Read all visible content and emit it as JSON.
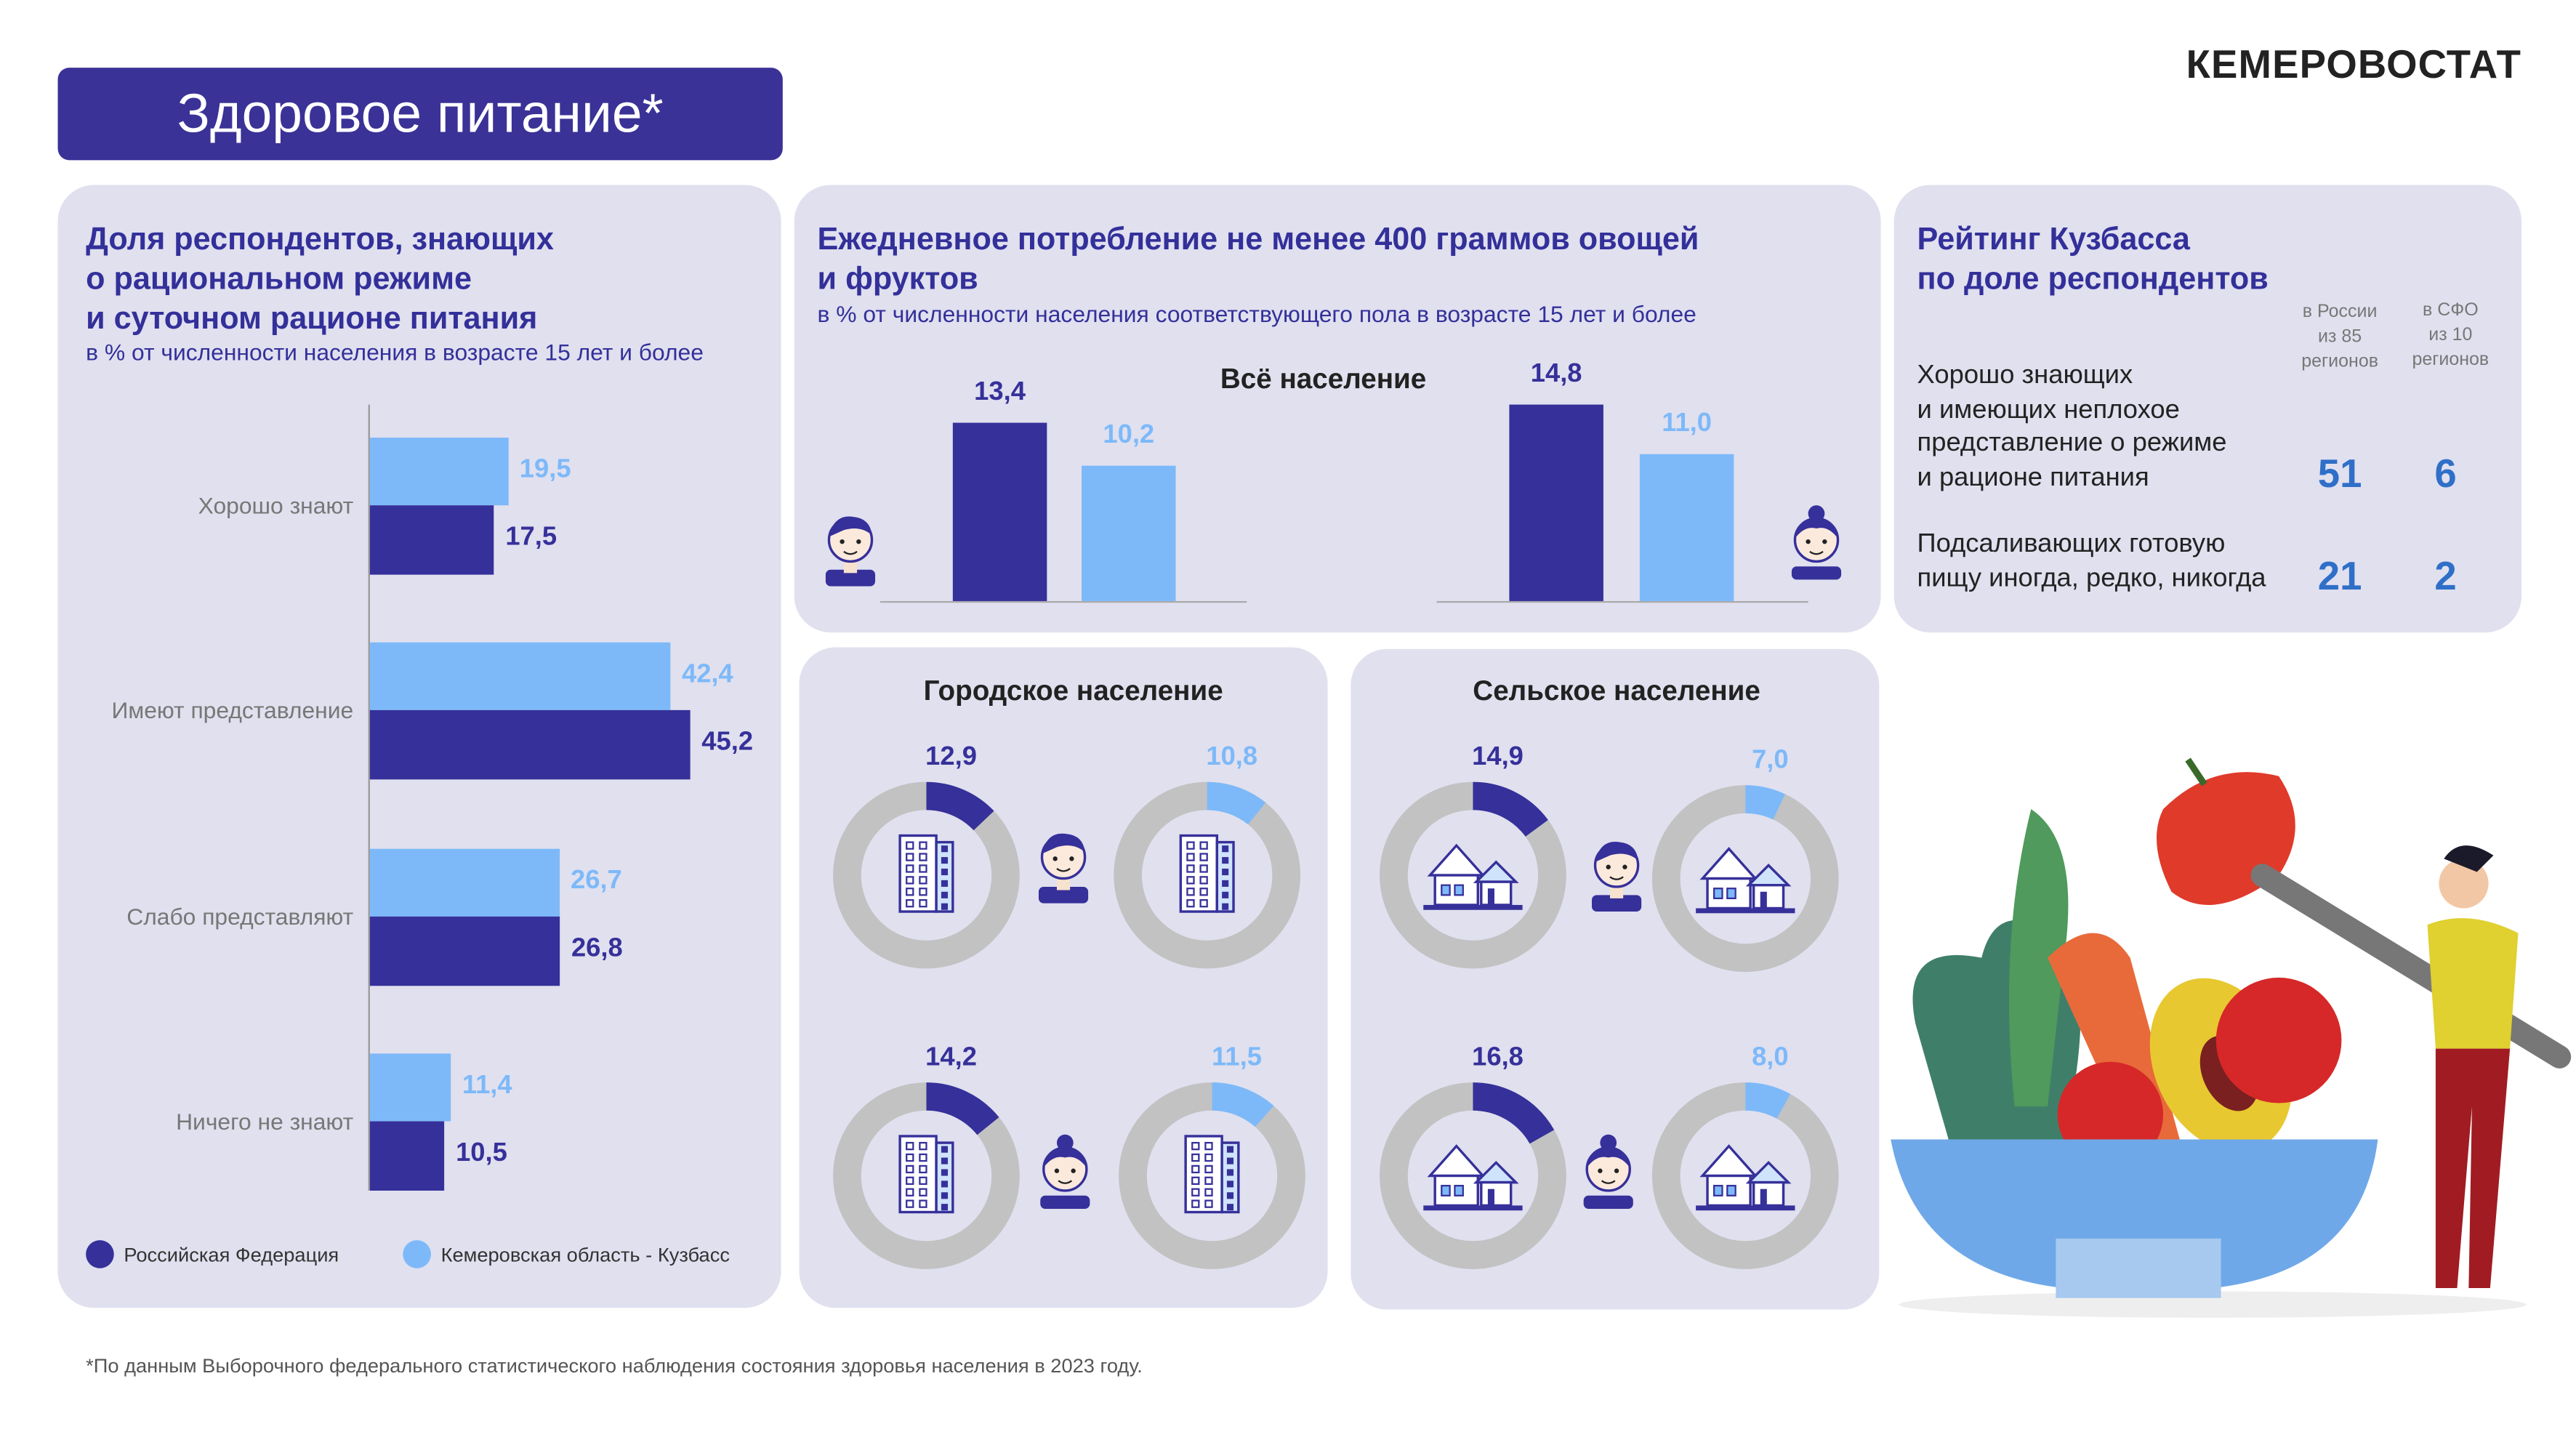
{
  "header": {
    "title": "Здоровое питание*",
    "logo": "КЕМЕРОВОСТАТ"
  },
  "footnote": "*По данным Выборочного федерального статистического наблюдения состояния здоровья населения в 2023 году.",
  "ranking": {
    "title_lines": [
      "Рейтинг  Кузбасса",
      "по доле респондентов"
    ],
    "col_headers": [
      [
        "в России",
        "из 85",
        "регионов"
      ],
      [
        "в СФО",
        "из 10",
        "регионов"
      ]
    ],
    "rows": [
      {
        "label_lines": [
          "Хорошо знающих",
          "и имеющих неплохое",
          "представление о режиме",
          "и рационе питания"
        ],
        "russia": "51",
        "sfo": "6"
      },
      {
        "label_lines": [
          "Подсаливающих готовую",
          "пищу иногда, редко, никогда"
        ],
        "russia": "21",
        "sfo": "2"
      }
    ]
  },
  "colors": {
    "rf": "#36309a",
    "kuzbass": "#7db9f9",
    "panel": "#e0e0ef",
    "ring": "#c2c2c2"
  },
  "chart_data": [
    {
      "type": "bar",
      "orientation": "horizontal",
      "title_lines": [
        "Доля респондентов, знающих",
        "о рациональном режиме",
        "и суточном рационе питания"
      ],
      "subtitle": "в % от численности населения в возрасте 15 лет и более",
      "categories": [
        "Хорошо знают",
        "Имеют представление",
        "Слабо представляют",
        "Ничего не знают"
      ],
      "series": [
        {
          "name": "Кемеровская область - Кузбасс",
          "values": [
            19.5,
            42.4,
            26.7,
            11.4
          ]
        },
        {
          "name": "Российская Федерация",
          "values": [
            17.5,
            45.2,
            26.8,
            10.5
          ]
        }
      ],
      "legend": [
        "Российская Федерация",
        "Кемеровская область - Кузбасс"
      ],
      "legend_position": "bottom"
    },
    {
      "type": "bar",
      "title_lines": [
        "Ежедневное потребление не менее 400 граммов овощей",
        "и фруктов"
      ],
      "subtitle": "в % от численности населения соответствующего пола в возрасте 15 лет и более",
      "label": "Всё население",
      "categories": [
        "Мужчины",
        "Женщины"
      ],
      "series": [
        {
          "name": "Российская Федерация",
          "values": [
            13.4,
            14.8
          ]
        },
        {
          "name": "Кемеровская область - Кузбасс",
          "values": [
            10.2,
            11.0
          ]
        }
      ]
    },
    {
      "type": "pie",
      "variant": "donut",
      "title": "Городское население",
      "categories": [
        "Мужчины",
        "Женщины"
      ],
      "series": [
        {
          "name": "Российская Федерация",
          "values": [
            12.9,
            14.2
          ]
        },
        {
          "name": "Кемеровская область - Кузбасс",
          "values": [
            10.8,
            11.5
          ]
        }
      ],
      "icon": "apartment-building-icon"
    },
    {
      "type": "pie",
      "variant": "donut",
      "title": "Сельское население",
      "categories": [
        "Мужчины",
        "Женщины"
      ],
      "series": [
        {
          "name": "Российская Федерация",
          "values": [
            14.9,
            16.8
          ]
        },
        {
          "name": "Кемеровская область - Кузбасс",
          "values": [
            7.0,
            8.0
          ]
        }
      ],
      "icon": "village-houses-icon"
    }
  ]
}
